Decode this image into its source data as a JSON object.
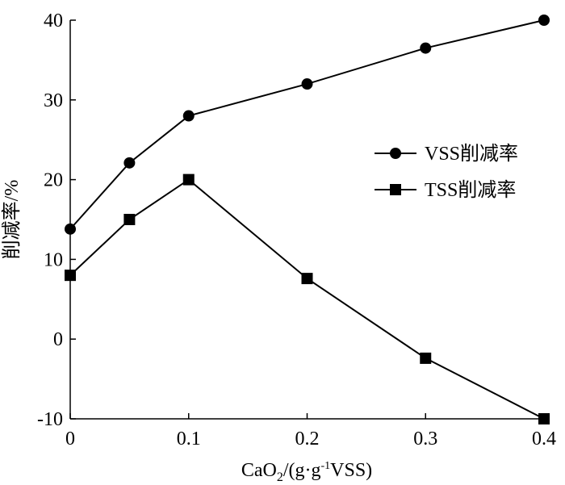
{
  "chart_data": {
    "type": "line",
    "xlabel": {
      "prefix": "CaO",
      "subscript": "2",
      "middle": "/(g·g",
      "superscript": "-1",
      "suffix": "VSS)"
    },
    "ylabel": "削减率/%",
    "xlim": [
      0,
      0.4
    ],
    "ylim": [
      -10,
      40
    ],
    "x_ticks": [
      0,
      0.1,
      0.2,
      0.3,
      0.4
    ],
    "x_tick_labels": [
      "0",
      "0.1",
      "0.2",
      "0.3",
      "0.4"
    ],
    "y_ticks": [
      -10,
      0,
      10,
      20,
      30,
      40
    ],
    "y_tick_labels": [
      "-10",
      "0",
      "10",
      "20",
      "30",
      "40"
    ],
    "grid": false,
    "legend_position": "center-right",
    "series": [
      {
        "name": "VSS削减率",
        "marker": "circle",
        "color": "#000000",
        "x": [
          0,
          0.05,
          0.1,
          0.2,
          0.3,
          0.4
        ],
        "y": [
          13.8,
          22.1,
          28.0,
          32.0,
          36.5,
          40.0
        ]
      },
      {
        "name": "TSS削减率",
        "marker": "square",
        "color": "#000000",
        "x": [
          0,
          0.05,
          0.1,
          0.2,
          0.3,
          0.4
        ],
        "y": [
          8.0,
          15.0,
          20.0,
          7.6,
          -2.4,
          -10.0
        ]
      }
    ]
  }
}
